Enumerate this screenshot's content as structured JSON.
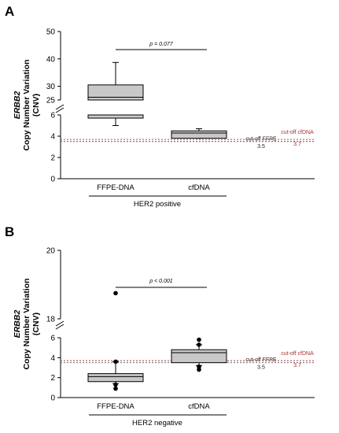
{
  "chart_data": [
    {
      "panel": "A",
      "type": "box",
      "ylabel_gene": "ERBB2",
      "ylabel_line1": "Copy Number Variation",
      "ylabel_line2": "(CNV)",
      "y_lower_range": [
        0,
        6
      ],
      "y_lower_ticks": [
        "0",
        "2",
        "4",
        "6"
      ],
      "y_upper_range": [
        25,
        50
      ],
      "y_upper_ticks": [
        "25",
        "30",
        "40",
        "50"
      ],
      "categories": [
        "FFPE-DNA",
        "cfDNA"
      ],
      "group_label": "HER2 positive",
      "pvalue": "p = 0.077",
      "boxes": [
        {
          "name": "FFPE-DNA",
          "whisker_low": 5.0,
          "q1": 5.7,
          "median": 26.0,
          "q3": 30.5,
          "whisker_high": 38.7,
          "outliers": []
        },
        {
          "name": "cfDNA",
          "whisker_low": 3.8,
          "q1": 3.8,
          "median": 4.3,
          "q3": 4.5,
          "whisker_high": 4.7,
          "outliers": []
        }
      ],
      "cutoffs": [
        {
          "label": "cut-off FFPE",
          "value": 3.5,
          "value_label": "3.5",
          "color": "#555555"
        },
        {
          "label": "cut-off cfDNA",
          "value": 3.7,
          "value_label": "3.7",
          "color": "#b03030"
        }
      ]
    },
    {
      "panel": "B",
      "type": "box",
      "ylabel_gene": "ERBB2",
      "ylabel_line1": "Copy Number Variation",
      "ylabel_line2": "(CNV)",
      "y_lower_range": [
        0,
        6
      ],
      "y_lower_ticks": [
        "0",
        "2",
        "4",
        "6"
      ],
      "y_upper_range": [
        18,
        20
      ],
      "y_upper_ticks": [
        "18",
        "20"
      ],
      "categories": [
        "FFPE-DNA",
        "cfDNA"
      ],
      "group_label": "HER2 negative",
      "pvalue": "p < 0.001",
      "boxes": [
        {
          "name": "FFPE-DNA",
          "whisker_low": 1.4,
          "q1": 1.6,
          "median": 2.1,
          "q3": 2.4,
          "whisker_high": 3.6,
          "outliers": [
            0.9,
            1.3,
            3.6,
            18.75
          ]
        },
        {
          "name": "cfDNA",
          "whisker_low": 3.2,
          "q1": 3.5,
          "median": 4.5,
          "q3": 4.8,
          "whisker_high": 5.3,
          "outliers": [
            2.8,
            3.1,
            5.3,
            5.8
          ]
        }
      ],
      "cutoffs": [
        {
          "label": "cut-off FFPE",
          "value": 3.5,
          "value_label": "3.5",
          "color": "#555555"
        },
        {
          "label": "cut-off cfDNA",
          "value": 3.7,
          "value_label": "3.7",
          "color": "#b03030"
        }
      ]
    }
  ]
}
